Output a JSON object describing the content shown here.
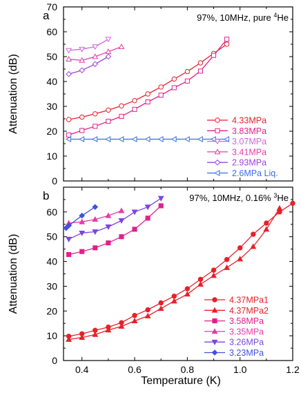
{
  "figure": {
    "xlabel": "Temperature (K)",
    "xticks": [
      "0.4",
      "0.6",
      "0.8",
      "1.0",
      "1.2"
    ]
  },
  "chart_data": [
    {
      "type": "line",
      "panel_letter": "a",
      "annotation": "97%, 10MHz, pure ",
      "annotation_sup": "4",
      "annotation_tail": "He",
      "ylabel": "Attenuation (dB)",
      "xlim": [
        0.33,
        1.2
      ],
      "ylim": [
        0,
        70
      ],
      "yticks": [
        0,
        10,
        20,
        30,
        40,
        50,
        60,
        70
      ],
      "grid": false,
      "legend_position": "bottom-right",
      "series": [
        {
          "name": "4.33MPa",
          "color": "#e8202a",
          "marker": "circle-open",
          "x": [
            0.35,
            0.4,
            0.45,
            0.5,
            0.55,
            0.6,
            0.65,
            0.7,
            0.75,
            0.8,
            0.85,
            0.9,
            0.95
          ],
          "y": [
            24.7,
            25.7,
            27.0,
            28.5,
            30.2,
            32.3,
            35.0,
            37.8,
            41.0,
            44.0,
            47.5,
            51.3,
            55.0
          ]
        },
        {
          "name": "3.83MPa",
          "color": "#e0208a",
          "marker": "square-open",
          "x": [
            0.35,
            0.4,
            0.45,
            0.5,
            0.55,
            0.6,
            0.65,
            0.7,
            0.75,
            0.8,
            0.85,
            0.9,
            0.95
          ],
          "y": [
            18.5,
            20.3,
            22.0,
            24.0,
            26.0,
            28.8,
            31.8,
            34.5,
            37.5,
            40.2,
            44.2,
            50.5,
            57.0
          ]
        },
        {
          "name": "3.07MPa",
          "color": "#cf63df",
          "marker": "triangle-down-open",
          "x": [
            0.35,
            0.4,
            0.45,
            0.5
          ],
          "y": [
            52.5,
            53.0,
            54.0,
            57.0
          ]
        },
        {
          "name": "3.41MPa",
          "color": "#e63ca8",
          "marker": "triangle-up-open",
          "x": [
            0.35,
            0.4,
            0.45,
            0.5,
            0.55
          ],
          "y": [
            49.0,
            48.5,
            50.0,
            52.0,
            54.0
          ]
        },
        {
          "name": "2.93MPa",
          "color": "#a040d8",
          "marker": "diamond-open",
          "x": [
            0.35,
            0.4,
            0.45,
            0.5
          ],
          "y": [
            43.0,
            44.5,
            47.0,
            50.0
          ]
        },
        {
          "name": "2.6MPa Liq.",
          "color": "#3a6ee0",
          "marker": "triangle-left-open",
          "x": [
            0.35,
            0.4,
            0.45,
            0.5,
            0.55,
            0.6,
            0.65,
            0.7,
            0.75,
            0.8,
            0.85,
            0.9,
            0.95
          ],
          "y": [
            16.8,
            16.8,
            16.8,
            16.8,
            16.8,
            16.8,
            16.8,
            16.8,
            16.8,
            16.8,
            16.8,
            16.8,
            16.8
          ]
        }
      ]
    },
    {
      "type": "line",
      "panel_letter": "b",
      "annotation": "97%, 10MHz, 0.16% ",
      "annotation_sup": "3",
      "annotation_tail": "He",
      "ylabel": "Attenuation (dB)",
      "xlim": [
        0.33,
        1.2
      ],
      "ylim": [
        0,
        70
      ],
      "yticks": [
        0,
        10,
        20,
        30,
        40,
        50,
        60
      ],
      "grid": false,
      "legend_position": "bottom-right",
      "series": [
        {
          "name": "4.37MPa1",
          "color": "#e8202a",
          "marker": "circle-filled",
          "x": [
            0.35,
            0.4,
            0.45,
            0.5,
            0.55,
            0.6,
            0.65,
            0.7,
            0.75,
            0.8,
            0.85,
            0.9,
            0.95,
            1.0,
            1.05,
            1.1,
            1.15,
            1.2
          ],
          "y": [
            9.8,
            10.8,
            12.2,
            13.5,
            15.3,
            18.2,
            20.5,
            23.3,
            26.0,
            29.0,
            32.8,
            36.5,
            40.8,
            45.5,
            51.0,
            55.5,
            60.0,
            63.5
          ]
        },
        {
          "name": "4.37MPa2",
          "color": "#e8202a",
          "marker": "triangle-up-filled",
          "x": [
            0.35,
            0.4,
            0.45,
            0.5,
            0.55,
            0.6,
            0.65,
            0.7,
            0.75,
            0.8,
            0.85,
            0.9,
            0.95,
            1.0,
            1.05,
            1.1,
            1.15
          ],
          "y": [
            8.5,
            9.3,
            10.5,
            12.3,
            13.8,
            16.0,
            18.0,
            21.0,
            24.0,
            26.8,
            30.8,
            34.3,
            37.5,
            41.0,
            46.0,
            53.0,
            61.5
          ]
        },
        {
          "name": "3.58MPa",
          "color": "#e0208a",
          "marker": "square-filled",
          "x": [
            0.35,
            0.4,
            0.45,
            0.5,
            0.55,
            0.6,
            0.65,
            0.7
          ],
          "y": [
            42.8,
            44.0,
            45.5,
            47.5,
            50.0,
            53.0,
            57.5,
            62.5
          ]
        },
        {
          "name": "3.35MPa",
          "color": "#e63ca8",
          "marker": "triangle-up-filled",
          "x": [
            0.35,
            0.4,
            0.45,
            0.5,
            0.55
          ],
          "y": [
            55.5,
            56.0,
            57.0,
            58.5,
            60.5
          ]
        },
        {
          "name": "3.26MPa",
          "color": "#7a46e0",
          "marker": "triangle-down-filled",
          "x": [
            0.35,
            0.4,
            0.45,
            0.5,
            0.55,
            0.6,
            0.65,
            0.7
          ],
          "y": [
            49.0,
            51.5,
            52.0,
            54.0,
            56.5,
            60.0,
            62.0,
            65.5
          ]
        },
        {
          "name": "3.23MPa",
          "color": "#4050e0",
          "marker": "diamond-filled",
          "x": [
            0.34,
            0.35,
            0.4,
            0.45
          ],
          "y": [
            53.5,
            54.5,
            58.5,
            62.0
          ]
        }
      ]
    }
  ]
}
